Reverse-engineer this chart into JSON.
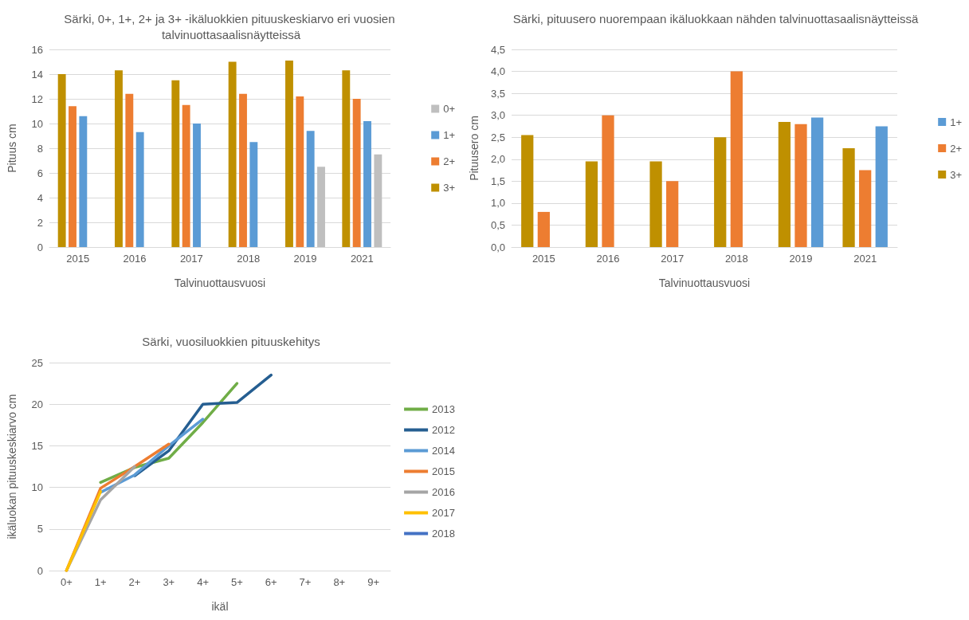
{
  "chart_data": [
    {
      "type": "bar",
      "title": "Särki, 0+, 1+, 2+ ja 3+ -ikäluokkien pituuskeskiarvo eri vuosien talvinuottasaalisnäytteissä",
      "xlabel": "Talvinuottausvuosi",
      "ylabel": "Pituus cm",
      "categories": [
        "2015",
        "2016",
        "2017",
        "2018",
        "2019",
        "2021"
      ],
      "series": [
        {
          "name": "3+",
          "color": "#bf9000",
          "values": [
            14.0,
            14.3,
            13.5,
            15.0,
            15.1,
            14.3
          ]
        },
        {
          "name": "2+",
          "color": "#ed7d31",
          "values": [
            11.4,
            12.4,
            11.5,
            12.4,
            12.2,
            12.0
          ]
        },
        {
          "name": "1+",
          "color": "#5b9bd5",
          "values": [
            10.6,
            9.3,
            10.0,
            8.5,
            9.4,
            10.2
          ]
        },
        {
          "name": "0+",
          "color": "#bfbfbf",
          "values": [
            null,
            null,
            null,
            null,
            6.5,
            7.5
          ]
        }
      ],
      "ylim": [
        0,
        16
      ],
      "yticks": [
        0,
        2,
        4,
        6,
        8,
        10,
        12,
        14,
        16
      ],
      "grid": "y",
      "legend": "right"
    },
    {
      "type": "bar",
      "title": "Särki, pituusero nuorempaan ikäluokkaan nähden talvinuottasaalisnäytteissä",
      "xlabel": "Talvinuottausvuosi",
      "ylabel": "Pituusero cm",
      "categories": [
        "2015",
        "2016",
        "2017",
        "2018",
        "2019",
        "2021"
      ],
      "series": [
        {
          "name": "3+",
          "color": "#bf9000",
          "values": [
            2.55,
            1.95,
            1.95,
            2.5,
            2.85,
            2.25
          ]
        },
        {
          "name": "2+",
          "color": "#ed7d31",
          "values": [
            0.8,
            3.0,
            1.5,
            4.0,
            2.8,
            1.75
          ]
        },
        {
          "name": "1+",
          "color": "#5b9bd5",
          "values": [
            null,
            null,
            null,
            null,
            2.95,
            2.75
          ]
        }
      ],
      "ylim": [
        0,
        4.5
      ],
      "yticks": [
        {
          "value": 0,
          "label": "0,0"
        },
        {
          "value": 0.5,
          "label": "0,5"
        },
        {
          "value": 1,
          "label": "1,0"
        },
        {
          "value": 1.5,
          "label": "1,5"
        },
        {
          "value": 2,
          "label": "2,0"
        },
        {
          "value": 2.5,
          "label": "2,5"
        },
        {
          "value": 3,
          "label": "3,0"
        },
        {
          "value": 3.5,
          "label": "3,5"
        },
        {
          "value": 4,
          "label": "4,0"
        },
        {
          "value": 4.5,
          "label": "4,5"
        }
      ],
      "grid": "y",
      "legend": "right"
    },
    {
      "type": "line",
      "title": "Särki, vuosiluokkien pituuskehitys",
      "xlabel": "ikäl",
      "ylabel": "ikäluokan pituuskeskiarvo cm",
      "categories": [
        "0+",
        "1+",
        "2+",
        "3+",
        "4+",
        "5+",
        "6+",
        "7+",
        "8+",
        "9+"
      ],
      "series": [
        {
          "name": "2013",
          "color": "#70ad47",
          "values": [
            null,
            10.6,
            12.4,
            13.5,
            17.8,
            22.5,
            null,
            null,
            null,
            null
          ]
        },
        {
          "name": "2012",
          "color": "#255e91",
          "values": [
            null,
            null,
            11.4,
            14.4,
            20.0,
            20.2,
            23.5,
            null,
            null,
            null
          ]
        },
        {
          "name": "2014",
          "color": "#5b9bd5",
          "values": [
            null,
            9.4,
            11.5,
            15.0,
            18.2,
            null,
            null,
            null,
            null,
            null
          ]
        },
        {
          "name": "2015",
          "color": "#ed7d31",
          "values": [
            0,
            9.9,
            12.5,
            15.2,
            null,
            null,
            null,
            null,
            null,
            null
          ]
        },
        {
          "name": "2016",
          "color": "#a5a5a5",
          "values": [
            0,
            8.5,
            12.5,
            null,
            null,
            null,
            null,
            null,
            null,
            null
          ]
        },
        {
          "name": "2017",
          "color": "#ffc000",
          "values": [
            0,
            9.5,
            null,
            null,
            null,
            null,
            null,
            null,
            null,
            null
          ]
        },
        {
          "name": "2018",
          "color": "#4472c4",
          "values": [
            null,
            null,
            null,
            null,
            null,
            null,
            null,
            null,
            null,
            null
          ]
        }
      ],
      "ylim": [
        0,
        25
      ],
      "yticks": [
        0,
        5,
        10,
        15,
        20,
        25
      ],
      "grid": "y",
      "legend": "right",
      "marker": "none",
      "line_style": "solid"
    }
  ]
}
